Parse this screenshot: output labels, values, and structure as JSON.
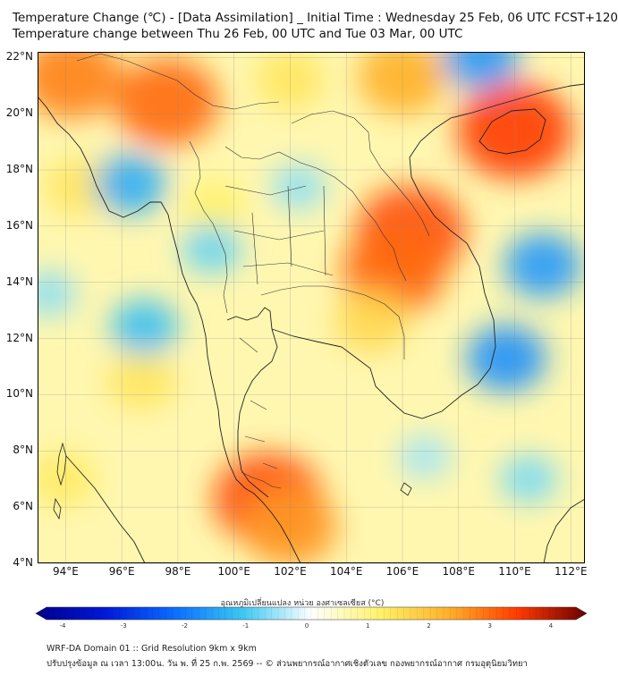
{
  "header": {
    "title_line1": "Temperature Change (℃) - [Data Assimilation] _ Initial Time : Wednesday 25 Feb, 06 UTC FCST+120",
    "title_line2": "Temperature change between Thu 26 Feb, 00 UTC and Tue 03 Mar, 00 UTC"
  },
  "map": {
    "lat_labels": [
      "22°N",
      "20°N",
      "18°N",
      "16°N",
      "14°N",
      "12°N",
      "10°N",
      "8°N",
      "6°N",
      "4°N"
    ],
    "lon_labels": [
      "94°E",
      "96°E",
      "98°E",
      "100°E",
      "102°E",
      "104°E",
      "106°E",
      "108°E",
      "110°E",
      "112°E"
    ],
    "extent": {
      "lon": [
        93,
        112.5
      ],
      "lat": [
        4,
        22.2
      ]
    }
  },
  "colorbar": {
    "title": "อุณหภูมิเปลี่ยนแปลง หน่วย องศาเซลเซียส (°C)",
    "tick_labels": [
      "-4",
      "-3",
      "-2",
      "-1",
      "0",
      "1",
      "2",
      "3",
      "4"
    ],
    "range": [
      -4,
      4
    ],
    "colors": [
      "#00008a",
      "#0018d8",
      "#0a6cff",
      "#3cc8f2",
      "#ffffff",
      "#fff26a",
      "#ffb02a",
      "#ff3a00",
      "#6a0000"
    ]
  },
  "footer": {
    "line1": "WRF-DA Domain 01 :: Grid Resolution 9km x 9km",
    "line2": "ปรับปรุงข้อมูล ณ เวลา 13:00น. วัน พ. ที่ 25 ก.พ. 2569 -- © ส่วนพยากรณ์อากาศเชิงตัวเลข กองพยากรณ์อากาศ กรมอุตุนิยมวิทยา"
  },
  "anomaly_fields": [
    {
      "lon": 94.2,
      "lat": 21.3,
      "value": 2.4
    },
    {
      "lon": 97.6,
      "lat": 20.4,
      "value": 2.6
    },
    {
      "lon": 102.0,
      "lat": 21.2,
      "value": 1.2
    },
    {
      "lon": 106.0,
      "lat": 21.3,
      "value": 2.0
    },
    {
      "lon": 110.0,
      "lat": 19.4,
      "value": 3.0
    },
    {
      "lon": 106.3,
      "lat": 15.8,
      "value": 2.8
    },
    {
      "lon": 105.7,
      "lat": 14.4,
      "value": 2.6
    },
    {
      "lon": 104.9,
      "lat": 12.6,
      "value": 1.4
    },
    {
      "lon": 101.2,
      "lat": 6.3,
      "value": 2.8
    },
    {
      "lon": 102.0,
      "lat": 5.3,
      "value": 2.2
    },
    {
      "lon": 99.3,
      "lat": 16.7,
      "value": 1.0
    },
    {
      "lon": 94.5,
      "lat": 17.4,
      "value": 1.2
    },
    {
      "lon": 96.7,
      "lat": 10.5,
      "value": 1.2
    },
    {
      "lon": 93.9,
      "lat": 7.0,
      "value": 1.1
    },
    {
      "lon": 96.3,
      "lat": 17.5,
      "value": -1.3
    },
    {
      "lon": 96.8,
      "lat": 12.4,
      "value": -1.1
    },
    {
      "lon": 99.2,
      "lat": 15.2,
      "value": -0.8
    },
    {
      "lon": 102.3,
      "lat": 17.4,
      "value": -0.6
    },
    {
      "lon": 111.0,
      "lat": 14.6,
      "value": -1.5
    },
    {
      "lon": 109.7,
      "lat": 11.3,
      "value": -1.6
    },
    {
      "lon": 108.8,
      "lat": 22.0,
      "value": -1.5
    },
    {
      "lon": 106.8,
      "lat": 7.8,
      "value": -0.5
    },
    {
      "lon": 110.5,
      "lat": 7.0,
      "value": -0.7
    },
    {
      "lon": 93.4,
      "lat": 13.6,
      "value": -0.6
    }
  ]
}
